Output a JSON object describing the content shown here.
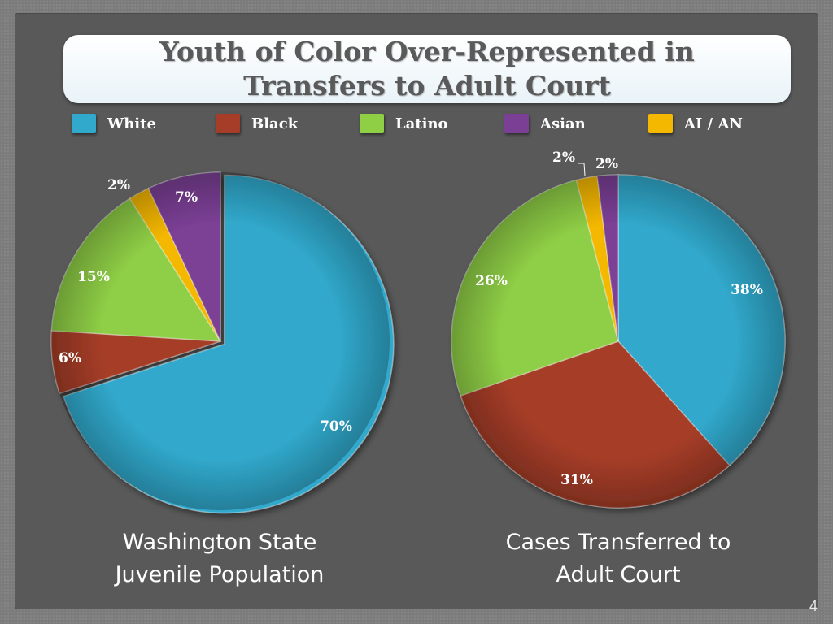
{
  "title": "Youth of Color Over-Represented in Transfers to Adult Court",
  "legend": [
    {
      "label": "White",
      "color": "#31a9cc"
    },
    {
      "label": "Black",
      "color": "#a63d28"
    },
    {
      "label": "Latino",
      "color": "#8fcf46"
    },
    {
      "label": "Asian",
      "color": "#7b3f95"
    },
    {
      "label": "AI / AN",
      "color": "#f5b800"
    }
  ],
  "chart_data": [
    {
      "type": "pie",
      "caption": "Washington State Juvenile Population",
      "categories": [
        "White",
        "Black",
        "Latino",
        "AI / AN",
        "Asian"
      ],
      "values": [
        70,
        6,
        15,
        2,
        7
      ],
      "labels": [
        "70%",
        "6%",
        "15%",
        "2%",
        "7%"
      ]
    },
    {
      "type": "pie",
      "caption": "Cases Transferred to Adult Court",
      "categories": [
        "White",
        "Black",
        "Latino",
        "AI / AN",
        "Asian"
      ],
      "values": [
        38,
        31,
        26,
        2,
        2
      ],
      "labels": [
        "38%",
        "31%",
        "26%",
        "2%",
        "2%"
      ]
    }
  ],
  "captions": {
    "left_line1": "Washington State",
    "left_line2": "Juvenile Population",
    "right_line1": "Cases Transferred to",
    "right_line2": "Adult Court"
  },
  "page_number": "4"
}
